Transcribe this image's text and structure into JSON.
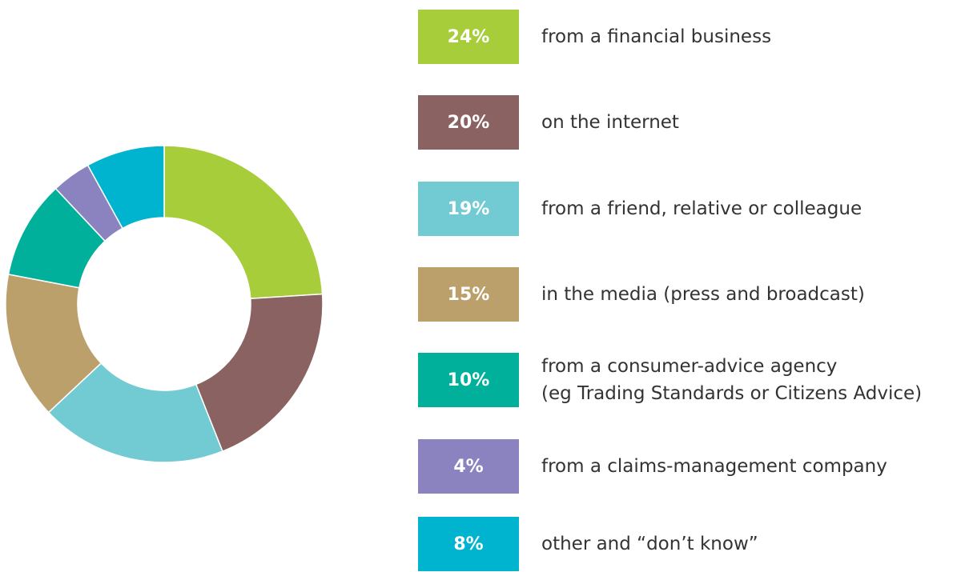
{
  "chart_data": {
    "type": "pie",
    "categories": [
      "from a financial business",
      "on the internet",
      "from a friend, relative or colleague",
      "in the media (press and broadcast)",
      "from a consumer-advice agency\n(eg Trading Standards or Citizens Advice)",
      "from a claims-management company",
      "other and “don’t know”"
    ],
    "values": [
      24,
      20,
      19,
      15,
      10,
      4,
      8
    ],
    "value_labels": [
      "24%",
      "20%",
      "19%",
      "15%",
      "10%",
      "4%",
      "8%"
    ],
    "colors": [
      "#a8cd3a",
      "#8b6262",
      "#72cbd3",
      "#bca06c",
      "#00b09a",
      "#8a83c0",
      "#00b4cf"
    ]
  }
}
